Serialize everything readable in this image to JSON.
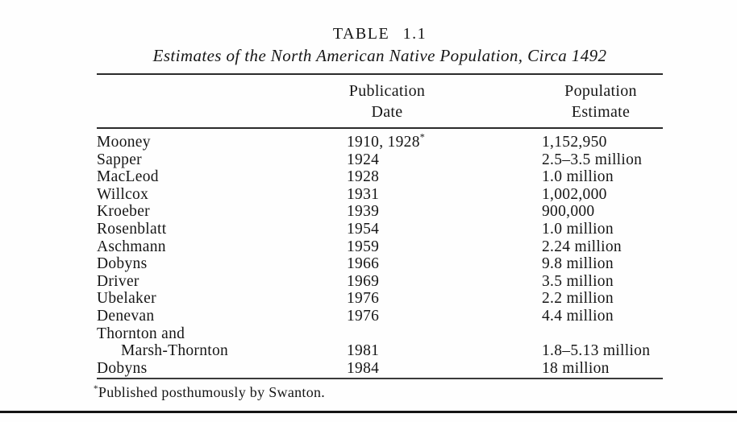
{
  "page": {
    "title": "TABLE 1.1",
    "subtitle": "Estimates of the North American Native Population, Circa 1492",
    "footnote_marker": "*",
    "footnote_text": "Published posthumously by Swanton."
  },
  "table": {
    "header": {
      "publication_line1": "Publication",
      "publication_line2": "Date",
      "population_line1": "Population",
      "population_line2": "Estimate"
    },
    "rows": [
      {
        "author": "Mooney",
        "date": "1910, 1928",
        "date_note": "*",
        "estimate": "1,152,950"
      },
      {
        "author": "Sapper",
        "date": "1924",
        "estimate": "2.5–3.5 million"
      },
      {
        "author": "MacLeod",
        "date": "1928",
        "estimate": "1.0 million"
      },
      {
        "author": "Willcox",
        "date": "1931",
        "estimate": "1,002,000"
      },
      {
        "author": "Kroeber",
        "date": "1939",
        "estimate": "900,000"
      },
      {
        "author": "Rosenblatt",
        "date": "1954",
        "estimate": "1.0 million"
      },
      {
        "author": "Aschmann",
        "date": "1959",
        "estimate": "2.24 million"
      },
      {
        "author": "Dobyns",
        "date": "1966",
        "estimate": "9.8 million"
      },
      {
        "author": "Driver",
        "date": "1969",
        "estimate": "3.5 million"
      },
      {
        "author": "Ubelaker",
        "date": "1976",
        "estimate": "2.2 million"
      },
      {
        "author": "Denevan",
        "date": "1976",
        "estimate": "4.4 million"
      },
      {
        "author": "Thornton and",
        "author_line2": "Marsh-Thornton",
        "date": "1981",
        "estimate": "1.8–5.13 million"
      },
      {
        "author": "Dobyns",
        "date": "1984",
        "estimate": "18 million"
      }
    ]
  }
}
